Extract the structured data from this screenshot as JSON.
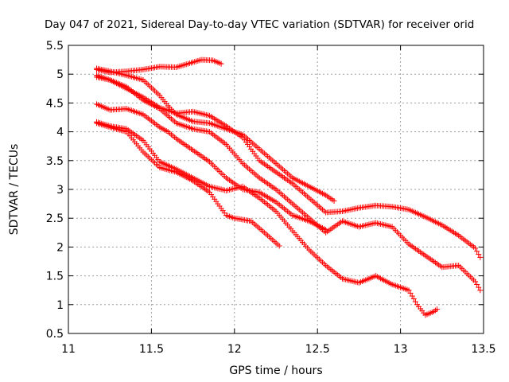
{
  "chart_data": {
    "type": "scatter",
    "title": "Day 047 of 2021, Sidereal Day-to-day VTEC variation (SDTVAR) for receiver orid",
    "xlabel": "GPS time / hours",
    "ylabel": "SDTVAR / TECUs",
    "xlim": [
      11,
      13.5
    ],
    "ylim": [
      0.5,
      5.5
    ],
    "xticks": [
      11,
      11.5,
      12,
      12.5,
      13,
      13.5
    ],
    "yticks": [
      0.5,
      1,
      1.5,
      2,
      2.5,
      3,
      3.5,
      4,
      4.5,
      5,
      5.5
    ],
    "xtick_labels": [
      "11",
      "11.5",
      "12",
      "12.5",
      "13",
      "13.5"
    ],
    "ytick_labels": [
      "0.5",
      "1",
      "1.5",
      "2",
      "2.5",
      "3",
      "3.5",
      "4",
      "4.5",
      "5",
      "5.5"
    ],
    "grid": true,
    "marker": "+",
    "color": "#ff0000",
    "series": [
      {
        "name": "s1",
        "x": [
          11.17,
          11.25,
          11.35,
          11.45,
          11.55,
          11.65,
          11.72,
          11.8,
          11.87,
          11.92
        ],
        "y": [
          5.08,
          5.03,
          5.05,
          5.08,
          5.13,
          5.12,
          5.18,
          5.25,
          5.24,
          5.18
        ]
      },
      {
        "name": "s2",
        "x": [
          11.17,
          11.25,
          11.35,
          11.45,
          11.55,
          11.6,
          11.65,
          11.75,
          11.85,
          11.95,
          12.05,
          12.15,
          12.25,
          12.35,
          12.45,
          12.55,
          12.6
        ],
        "y": [
          5.1,
          5.05,
          4.98,
          4.9,
          4.63,
          4.45,
          4.3,
          4.18,
          4.15,
          4.05,
          3.95,
          3.7,
          3.45,
          3.2,
          3.05,
          2.9,
          2.8
        ]
      },
      {
        "name": "s3",
        "x": [
          11.17,
          11.25,
          11.35,
          11.45,
          11.55,
          11.65,
          11.75,
          11.85,
          11.95,
          12.05,
          12.15,
          12.25,
          12.35,
          12.45,
          12.55,
          12.65,
          12.75,
          12.85,
          12.95,
          13.05,
          13.15,
          13.25,
          13.35,
          13.45,
          13.48
        ],
        "y": [
          4.95,
          4.9,
          4.75,
          4.6,
          4.42,
          4.32,
          4.35,
          4.28,
          4.1,
          3.9,
          3.5,
          3.3,
          3.1,
          2.85,
          2.6,
          2.62,
          2.68,
          2.72,
          2.7,
          2.65,
          2.52,
          2.38,
          2.2,
          1.98,
          1.82
        ]
      },
      {
        "name": "s4",
        "x": [
          11.17,
          11.25,
          11.35,
          11.45,
          11.55,
          11.65,
          11.75,
          11.85,
          11.95,
          12.05,
          12.15,
          12.25,
          12.35,
          12.45,
          12.55,
          12.65,
          12.75,
          12.85,
          12.95,
          13.05,
          13.15,
          13.25,
          13.35,
          13.45,
          13.48
        ],
        "y": [
          4.98,
          4.9,
          4.78,
          4.55,
          4.4,
          4.15,
          4.05,
          4.0,
          3.78,
          3.45,
          3.2,
          3.0,
          2.75,
          2.5,
          2.25,
          2.45,
          2.35,
          2.42,
          2.35,
          2.05,
          1.85,
          1.65,
          1.68,
          1.4,
          1.25
        ]
      },
      {
        "name": "s5",
        "x": [
          11.17,
          11.25,
          11.35,
          11.45,
          11.55,
          11.6,
          11.65,
          11.75,
          11.85,
          11.95,
          12.05,
          12.15,
          12.25,
          12.35,
          12.45,
          12.55
        ],
        "y": [
          4.48,
          4.38,
          4.4,
          4.3,
          4.08,
          4.0,
          3.88,
          3.68,
          3.48,
          3.2,
          3.0,
          2.95,
          2.78,
          2.55,
          2.45,
          2.3
        ]
      },
      {
        "name": "s6",
        "x": [
          11.17,
          11.25,
          11.35,
          11.45,
          11.55,
          11.65,
          11.75,
          11.85,
          11.95,
          12.05,
          12.15,
          12.25,
          12.35,
          12.45,
          12.55,
          12.65,
          12.75,
          12.85,
          12.95,
          13.05,
          13.1,
          13.15,
          13.2,
          13.22
        ],
        "y": [
          4.17,
          4.1,
          4.05,
          3.85,
          3.48,
          3.35,
          3.2,
          3.05,
          2.98,
          3.05,
          2.85,
          2.62,
          2.28,
          1.95,
          1.68,
          1.45,
          1.38,
          1.5,
          1.35,
          1.25,
          1.0,
          0.82,
          0.88,
          0.92
        ]
      },
      {
        "name": "s7",
        "x": [
          11.17,
          11.25,
          11.35,
          11.45,
          11.55,
          11.65,
          11.75,
          11.85,
          11.95,
          12.0,
          12.1,
          12.2,
          12.27
        ],
        "y": [
          4.15,
          4.08,
          4.0,
          3.65,
          3.38,
          3.3,
          3.15,
          2.95,
          2.55,
          2.5,
          2.45,
          2.2,
          2.02
        ]
      }
    ]
  }
}
